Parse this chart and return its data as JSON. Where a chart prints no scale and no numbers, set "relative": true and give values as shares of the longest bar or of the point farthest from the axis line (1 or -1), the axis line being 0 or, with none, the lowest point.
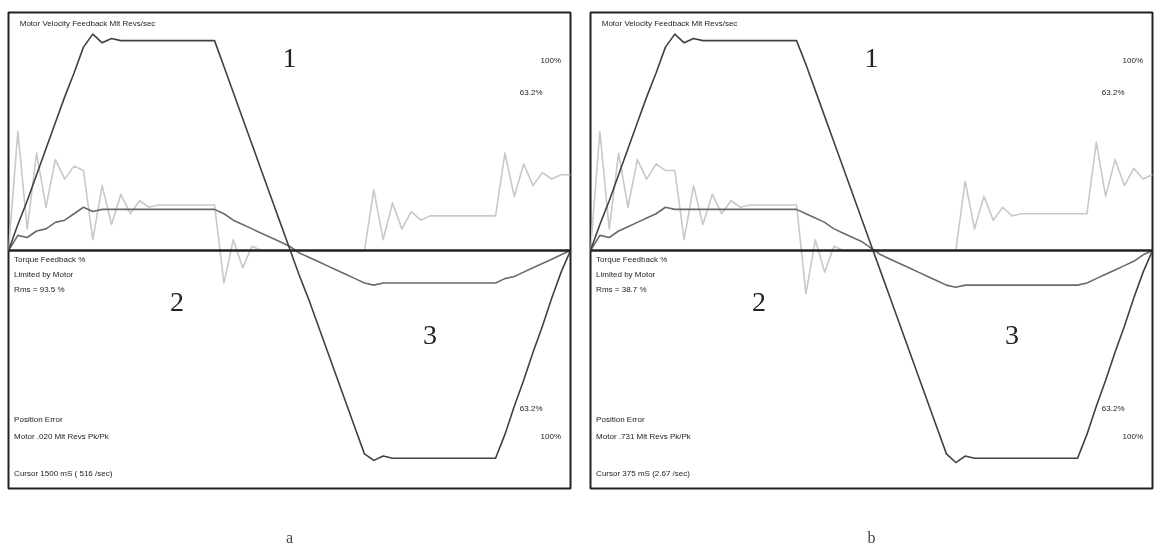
{
  "chart_data": [
    {
      "type": "line",
      "relative": true,
      "xlabel": "a",
      "categories": [
        null,
        null,
        null,
        null,
        null,
        null,
        null,
        null,
        null,
        null,
        null,
        null,
        null,
        null,
        null,
        null,
        null,
        null,
        null,
        null,
        null,
        null,
        null,
        null,
        null,
        null,
        null,
        null,
        null,
        null,
        null,
        null,
        null,
        null,
        null,
        null,
        null,
        null,
        null,
        null,
        null,
        null,
        null,
        null,
        null,
        null,
        null,
        null,
        null,
        null,
        null,
        null,
        null,
        null,
        null,
        null,
        null,
        null,
        null,
        null,
        null
      ],
      "series": [
        {
          "color": "#c8c8c8",
          "values": [
            0,
            0.55,
            0.1,
            0.45,
            0.2,
            0.42,
            0.33,
            0.39,
            0.37,
            0.05,
            0.3,
            0.12,
            0.26,
            0.17,
            0.23,
            0.2,
            0.21,
            0.21,
            0.21,
            0.21,
            0.21,
            0.21,
            0.21,
            -0.15,
            0.05,
            -0.08,
            0.02,
            0,
            0,
            0,
            0,
            0,
            0,
            0,
            0,
            0,
            0,
            0,
            0,
            0.28,
            0.05,
            0.22,
            0.1,
            0.18,
            0.14,
            0.16,
            0.16,
            0.16,
            0.16,
            0.16,
            0.16,
            0.16,
            0.16,
            0.45,
            0.25,
            0.4,
            0.3,
            0.36,
            0.33,
            0.35,
            0.35
          ]
        },
        {
          "color": "#6a6a6a",
          "values": [
            0,
            0.07,
            0.06,
            0.09,
            0.1,
            0.13,
            0.14,
            0.17,
            0.2,
            0.18,
            0.19,
            0.19,
            0.19,
            0.19,
            0.19,
            0.19,
            0.19,
            0.19,
            0.19,
            0.19,
            0.19,
            0.19,
            0.19,
            0.17,
            0.14,
            0.12,
            0.1,
            0.08,
            0.06,
            0.04,
            0.02,
            -0.01,
            -0.03,
            -0.05,
            -0.07,
            -0.09,
            -0.11,
            -0.13,
            -0.15,
            -0.16,
            -0.15,
            -0.15,
            -0.15,
            -0.15,
            -0.15,
            -0.15,
            -0.15,
            -0.15,
            -0.15,
            -0.15,
            -0.15,
            -0.15,
            -0.15,
            -0.13,
            -0.12,
            -0.1,
            -0.08,
            -0.06,
            -0.04,
            -0.02,
            0
          ]
        },
        {
          "color": "#404040",
          "values": [
            0,
            0.12,
            0.23,
            0.35,
            0.47,
            0.59,
            0.71,
            0.82,
            0.94,
            1,
            0.96,
            0.98,
            0.97,
            0.97,
            0.97,
            0.97,
            0.97,
            0.97,
            0.97,
            0.97,
            0.97,
            0.97,
            0.97,
            0.85,
            0.73,
            0.61,
            0.49,
            0.37,
            0.25,
            0.13,
            0.01,
            -0.11,
            -0.22,
            -0.34,
            -0.46,
            -0.58,
            -0.7,
            -0.82,
            -0.94,
            -0.97,
            -0.95,
            -0.96,
            -0.96,
            -0.96,
            -0.96,
            -0.96,
            -0.96,
            -0.96,
            -0.96,
            -0.96,
            -0.96,
            -0.96,
            -0.96,
            -0.85,
            -0.72,
            -0.6,
            -0.47,
            -0.35,
            -0.22,
            -0.1,
            0
          ]
        }
      ],
      "annotations": [
        "Motor Velocity Feedback Mlt Revs/sec",
        "Torque Feedback %",
        "Limited by Motor",
        "Rms = 93.5 %",
        "Position Error",
        "Motor .020 Mlt Revs Pk/Pk",
        "Cursor 1500 mS ( 516 /sec)",
        "100%",
        "63.2%",
        "63.2%",
        "100%",
        "1",
        "2",
        "3"
      ]
    },
    {
      "type": "line",
      "relative": true,
      "xlabel": "b",
      "categories": [
        null,
        null,
        null,
        null,
        null,
        null,
        null,
        null,
        null,
        null,
        null,
        null,
        null,
        null,
        null,
        null,
        null,
        null,
        null,
        null,
        null,
        null,
        null,
        null,
        null,
        null,
        null,
        null,
        null,
        null,
        null,
        null,
        null,
        null,
        null,
        null,
        null,
        null,
        null,
        null,
        null,
        null,
        null,
        null,
        null,
        null,
        null,
        null,
        null,
        null,
        null,
        null,
        null,
        null,
        null,
        null,
        null,
        null,
        null,
        null,
        null
      ],
      "series": [
        {
          "color": "#c8c8c8",
          "values": [
            0,
            0.55,
            0.1,
            0.45,
            0.2,
            0.42,
            0.33,
            0.4,
            0.37,
            0.37,
            0.05,
            0.3,
            0.12,
            0.26,
            0.17,
            0.23,
            0.2,
            0.21,
            0.21,
            0.21,
            0.21,
            0.21,
            0.21,
            -0.2,
            0.05,
            -0.1,
            0.02,
            0,
            0,
            0,
            0,
            0,
            0,
            0,
            0,
            0,
            0,
            0,
            0,
            0,
            0.32,
            0.1,
            0.25,
            0.14,
            0.2,
            0.16,
            0.17,
            0.17,
            0.17,
            0.17,
            0.17,
            0.17,
            0.17,
            0.17,
            0.5,
            0.25,
            0.42,
            0.3,
            0.38,
            0.33,
            0.35
          ]
        },
        {
          "color": "#6a6a6a",
          "values": [
            0,
            0.07,
            0.06,
            0.09,
            0.11,
            0.13,
            0.15,
            0.17,
            0.2,
            0.19,
            0.19,
            0.19,
            0.19,
            0.19,
            0.19,
            0.19,
            0.19,
            0.19,
            0.19,
            0.19,
            0.19,
            0.19,
            0.19,
            0.17,
            0.15,
            0.13,
            0.1,
            0.08,
            0.06,
            0.04,
            0.01,
            -0.02,
            -0.04,
            -0.06,
            -0.08,
            -0.1,
            -0.12,
            -0.14,
            -0.16,
            -0.17,
            -0.16,
            -0.16,
            -0.16,
            -0.16,
            -0.16,
            -0.16,
            -0.16,
            -0.16,
            -0.16,
            -0.16,
            -0.16,
            -0.16,
            -0.16,
            -0.15,
            -0.13,
            -0.11,
            -0.09,
            -0.07,
            -0.05,
            -0.02,
            0
          ]
        },
        {
          "color": "#404040",
          "values": [
            0,
            0.12,
            0.23,
            0.35,
            0.47,
            0.59,
            0.71,
            0.82,
            0.94,
            1,
            0.96,
            0.98,
            0.97,
            0.97,
            0.97,
            0.97,
            0.97,
            0.97,
            0.97,
            0.97,
            0.97,
            0.97,
            0.97,
            0.86,
            0.74,
            0.62,
            0.5,
            0.38,
            0.26,
            0.14,
            0.02,
            -0.1,
            -0.22,
            -0.34,
            -0.46,
            -0.58,
            -0.7,
            -0.82,
            -0.94,
            -0.98,
            -0.95,
            -0.96,
            -0.96,
            -0.96,
            -0.96,
            -0.96,
            -0.96,
            -0.96,
            -0.96,
            -0.96,
            -0.96,
            -0.96,
            -0.96,
            -0.85,
            -0.72,
            -0.6,
            -0.47,
            -0.35,
            -0.22,
            -0.1,
            0
          ]
        }
      ],
      "annotations": [
        "Motor Velocity Feedback Mlt Revs/sec",
        "Torque Feedback %",
        "Limited by Motor",
        "Rms = 38.7 %",
        "Position Error",
        "Motor .731 Mlt Revs Pk/Pk",
        "Cursor 375 mS (2.67 /sec)",
        "100%",
        "63.2%",
        "63.2%",
        "100%",
        "1",
        "2",
        "3"
      ]
    }
  ]
}
